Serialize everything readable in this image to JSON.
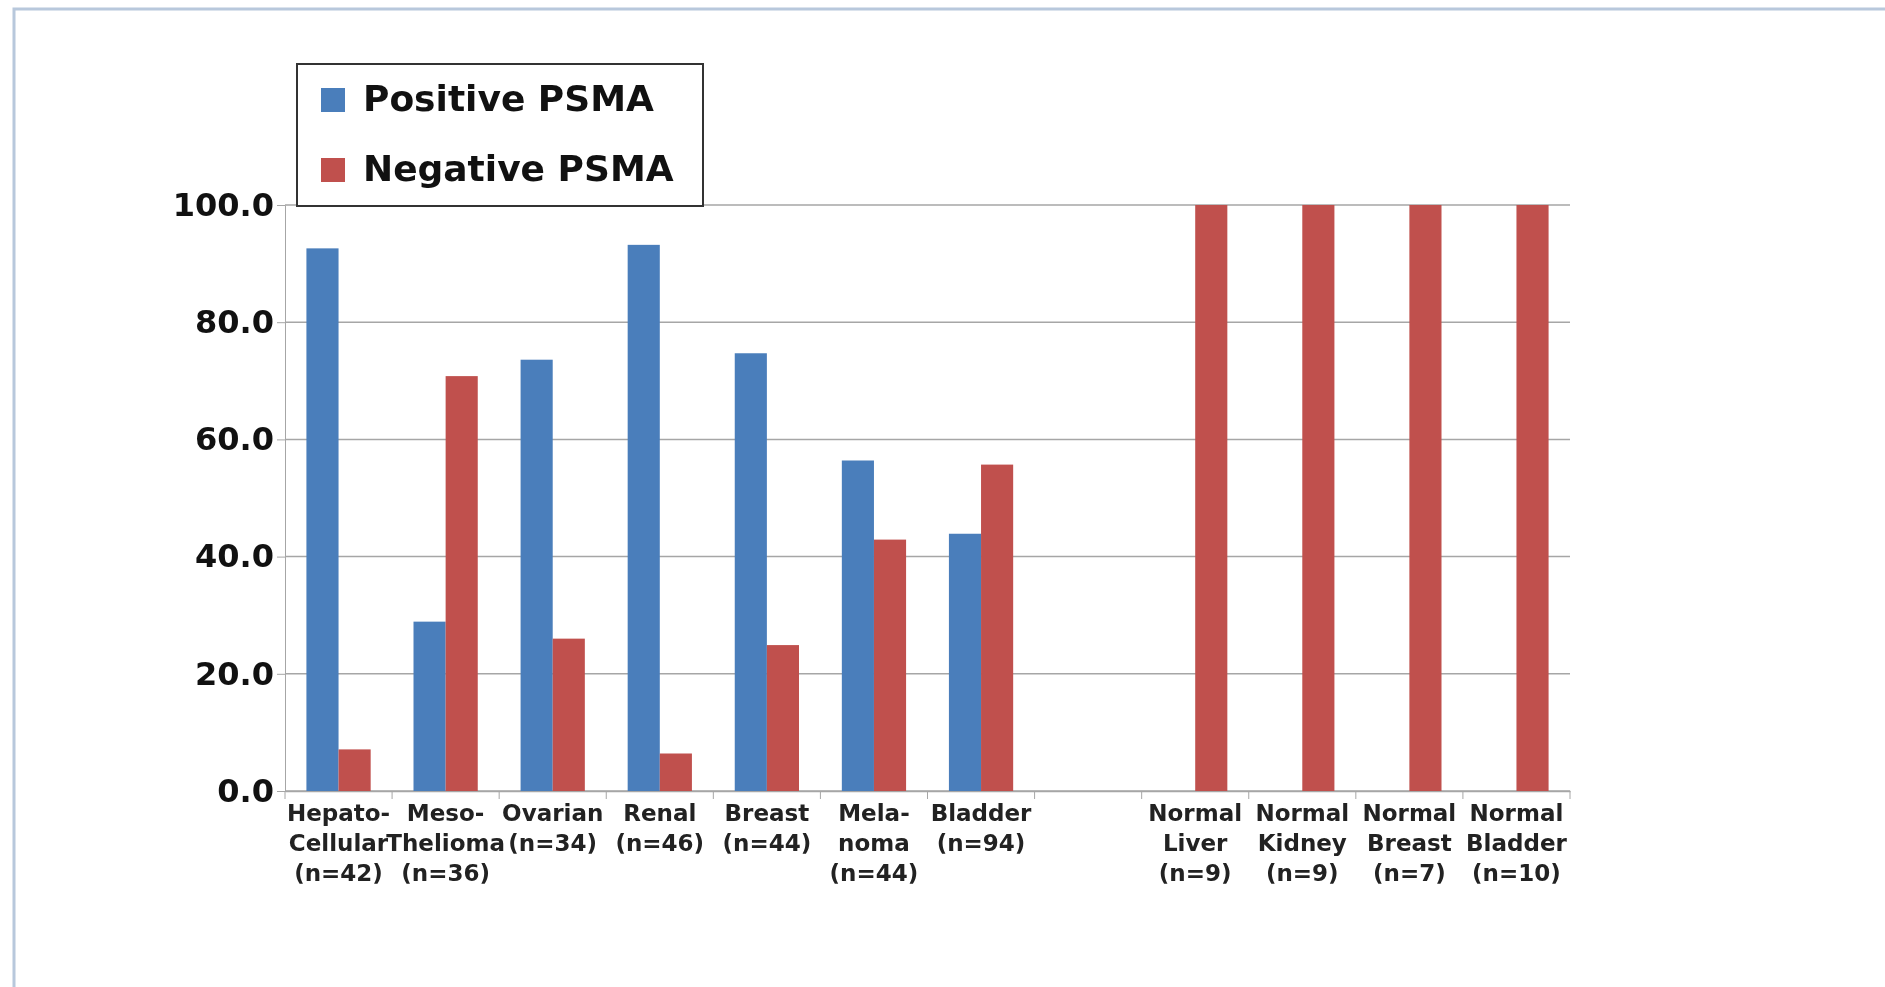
{
  "chart_data": {
    "type": "bar",
    "categories": [
      "Hepato-\nCellular\n(n=42)",
      "Meso-\nThelioma\n(n=36)",
      "Ovarian\n(n=34)",
      "Renal\n(n=46)",
      "Breast\n(n=44)",
      "Mela-\nnoma\n(n=44)",
      "Bladder\n(n=94)",
      null,
      "Normal\nLiver\n(n=9)",
      "Normal\nKidney\n(n=9)",
      "Normal\nBreast\n(n=7)",
      "Normal\nBladder\n(n=10)"
    ],
    "series": [
      {
        "name": "Positive PSMA",
        "color": "#4a7ebb",
        "values": [
          92.6,
          28.9,
          73.6,
          93.2,
          74.7,
          56.4,
          43.9,
          null,
          0,
          0,
          0,
          0
        ]
      },
      {
        "name": "Negative PSMA",
        "color": "#c0504d",
        "values": [
          7.1,
          70.8,
          26.0,
          6.4,
          24.9,
          42.9,
          55.7,
          null,
          100,
          100,
          100,
          100
        ]
      }
    ],
    "ylim": [
      0,
      100
    ],
    "yticks": [
      {
        "value": 0,
        "label": "0.0"
      },
      {
        "value": 20,
        "label": "20.0"
      },
      {
        "value": 40,
        "label": "40.0"
      },
      {
        "value": 60,
        "label": "60.0"
      },
      {
        "value": 80,
        "label": "80.0"
      },
      {
        "value": 100,
        "label": "100.0"
      }
    ],
    "grid": "y",
    "legend": "top left"
  }
}
